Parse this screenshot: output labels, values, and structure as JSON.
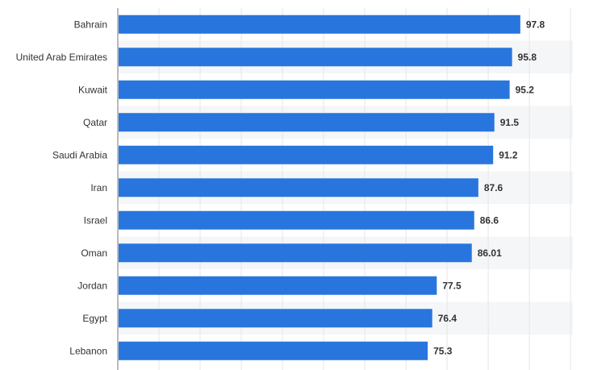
{
  "chart_data": {
    "type": "bar",
    "orientation": "horizontal",
    "categories": [
      "Bahrain",
      "United Arab Emirates",
      "Kuwait",
      "Qatar",
      "Saudi Arabia",
      "Iran",
      "Israel",
      "Oman",
      "Jordan",
      "Egypt",
      "Lebanon"
    ],
    "values": [
      97.8,
      95.8,
      95.2,
      91.5,
      91.2,
      87.6,
      86.6,
      86.01,
      77.5,
      76.4,
      75.3
    ],
    "value_labels": [
      "97.8",
      "95.8",
      "95.2",
      "91.5",
      "91.2",
      "87.6",
      "86.6",
      "86.01",
      "77.5",
      "76.4",
      "75.3"
    ],
    "title": "",
    "xlabel": "",
    "ylabel": "",
    "xlim": [
      0,
      110
    ],
    "grid": true,
    "bar_color": "#2876dd",
    "band_color": "#f5f6f7",
    "grid_color": "#e3e6ea",
    "axis_color": "#777777"
  }
}
